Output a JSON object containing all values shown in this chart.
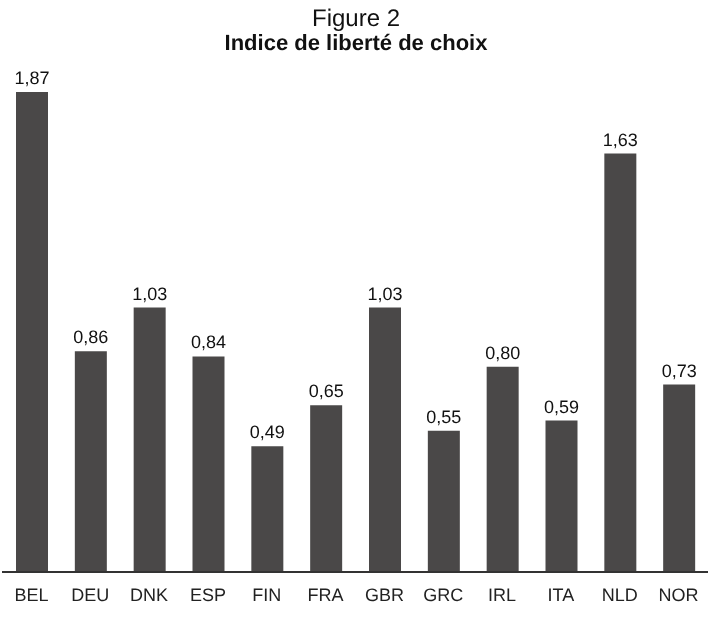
{
  "chart_data": {
    "type": "bar",
    "title": "Figure 2",
    "subtitle": "Indice de liberté de choix",
    "categories": [
      "BEL",
      "DEU",
      "DNK",
      "ESP",
      "FIN",
      "FRA",
      "GBR",
      "GRC",
      "IRL",
      "ITA",
      "NLD",
      "NOR"
    ],
    "values": [
      1.87,
      0.86,
      1.03,
      0.84,
      0.49,
      0.65,
      1.03,
      0.55,
      0.8,
      0.59,
      1.63,
      0.73
    ],
    "value_labels": [
      "1,87",
      "0,86",
      "1,03",
      "0,84",
      "0,49",
      "0,65",
      "1,03",
      "0,55",
      "0,80",
      "0,59",
      "1,63",
      "0,73"
    ],
    "color": "#4a4848",
    "tick_labels": "x"
  }
}
